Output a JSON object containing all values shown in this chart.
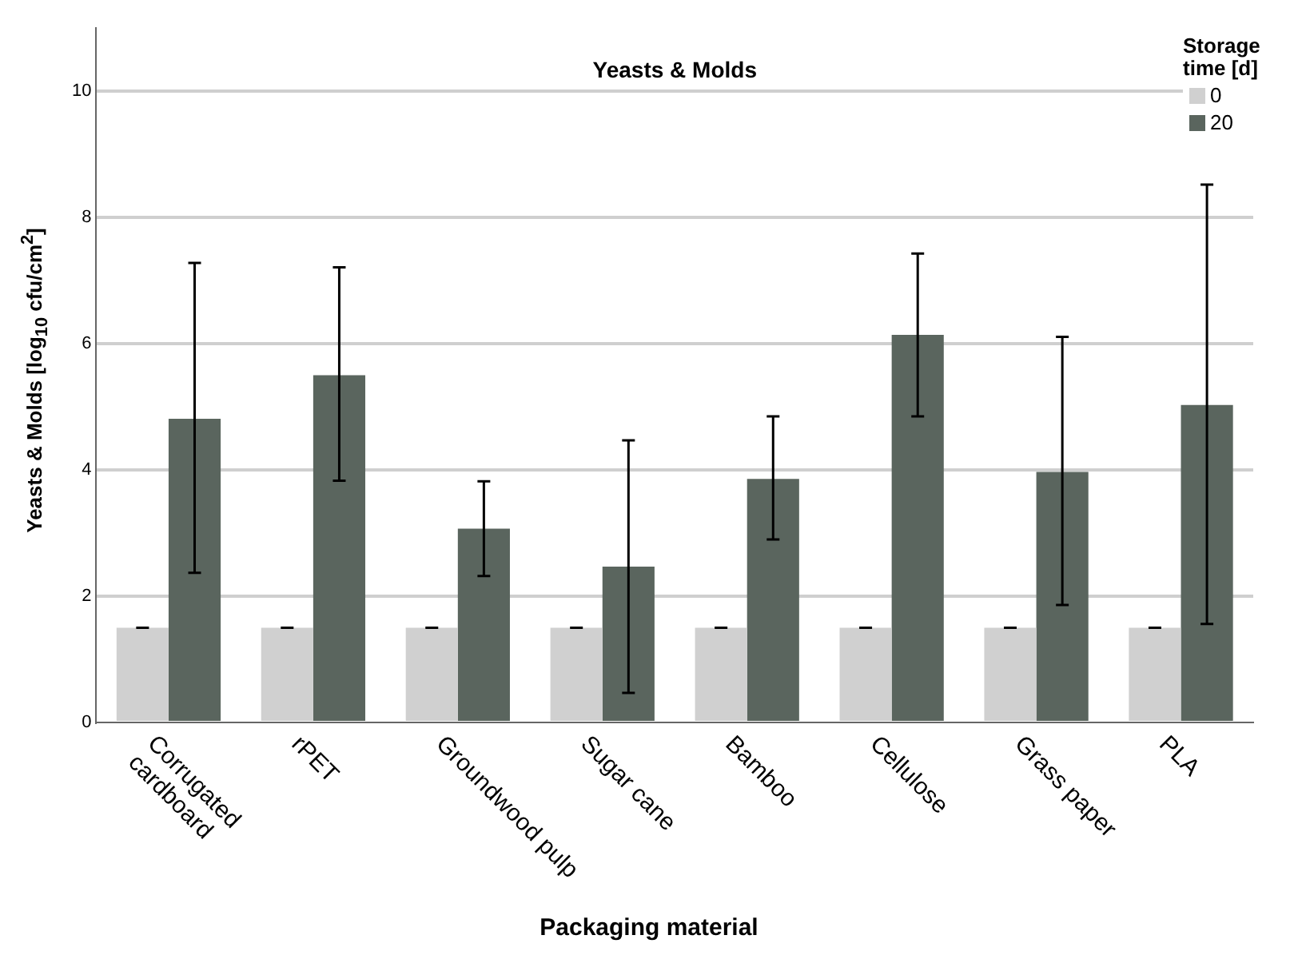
{
  "chart_data": {
    "type": "bar",
    "title": "Yeasts & Molds",
    "xlabel": "Packaging material",
    "ylabel": "Yeasts & Molds [log$_{10}$ cfu/cm$^{2}$]",
    "legend_title": "Storage time [d]",
    "categories": [
      "Corrugated cardboard",
      "rPET",
      "Groundwood pulp",
      "Sugar cane",
      "Bamboo",
      "Cellulose",
      "Grass paper",
      "PLA"
    ],
    "series": [
      {
        "name": "0",
        "color": "#d0d0d0",
        "values": [
          1.5,
          1.5,
          1.5,
          1.5,
          1.5,
          1.5,
          1.5,
          1.5
        ],
        "errors": [
          0,
          0,
          0,
          0,
          0,
          0,
          0,
          0
        ]
      },
      {
        "name": "20",
        "color": "#5a655e",
        "values": [
          4.81,
          5.5,
          3.07,
          2.47,
          3.86,
          6.14,
          3.97,
          5.03
        ],
        "errors": [
          [
            2.37,
            7.28
          ],
          [
            3.83,
            7.21
          ],
          [
            2.32,
            3.82
          ],
          [
            0.47,
            4.47
          ],
          [
            2.9,
            4.85
          ],
          [
            4.85,
            7.43
          ],
          [
            1.86,
            6.11
          ],
          [
            1.56,
            8.52
          ]
        ]
      }
    ],
    "ylim": [
      0,
      11
    ],
    "yticks": [
      0,
      2,
      4,
      6,
      8,
      10
    ],
    "grid": "y",
    "legend": "top right"
  }
}
